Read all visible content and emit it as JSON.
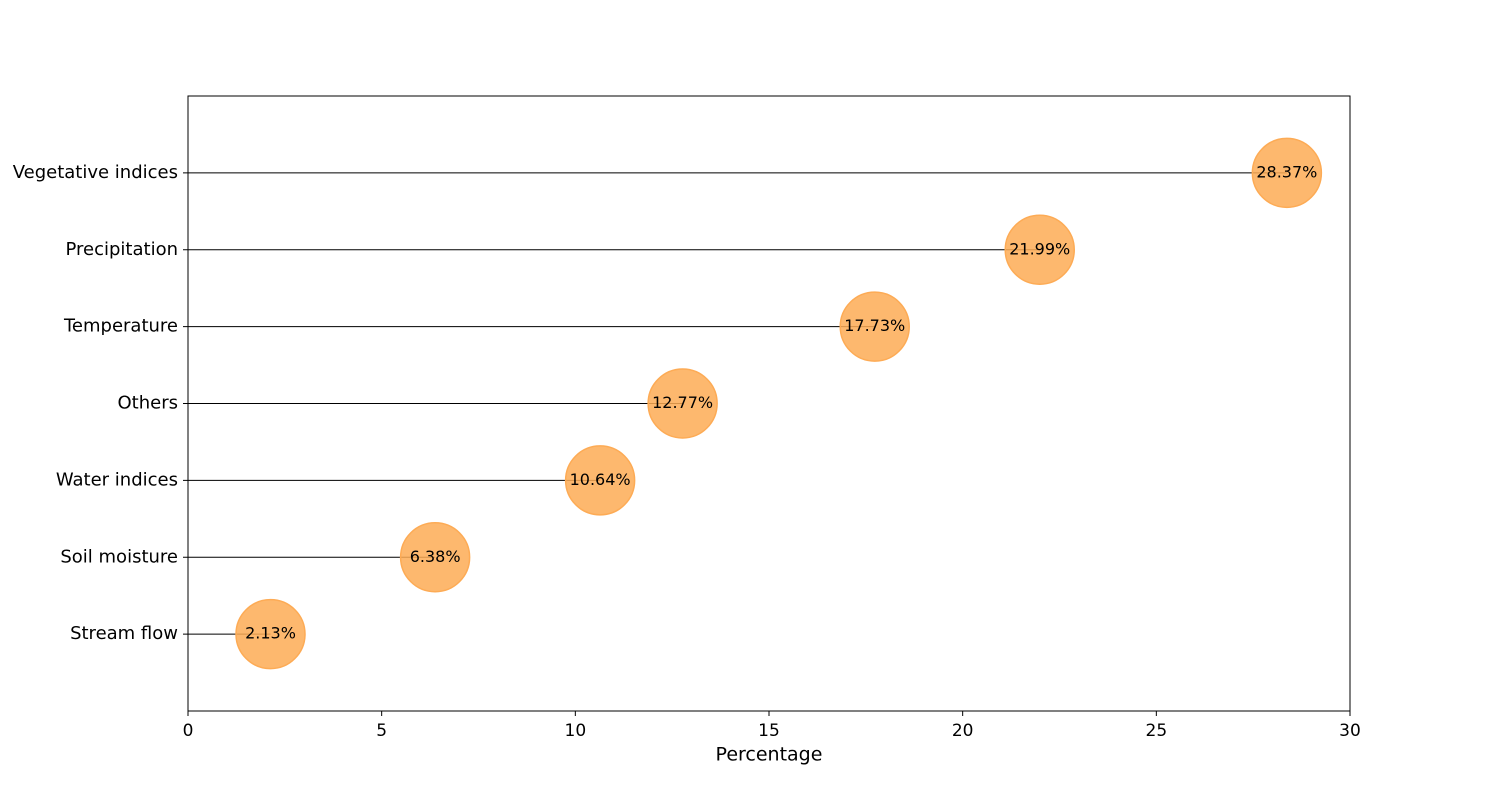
{
  "chart_data": {
    "type": "lollipop",
    "x_label": "Percentage",
    "categories": [
      "Vegetative indices",
      "Precipitation",
      "Temperature",
      "Others",
      "Water indices",
      "Soil moisture",
      "Stream flow"
    ],
    "values": [
      28.37,
      21.99,
      17.73,
      12.77,
      10.64,
      6.38,
      2.13
    ],
    "value_labels": [
      "28.37%",
      "21.99%",
      "17.73%",
      "12.77%",
      "10.64%",
      "6.38%",
      "2.13%"
    ],
    "color": "#fdab55",
    "xlim": [
      0,
      30
    ],
    "xticks": [
      0,
      5,
      10,
      15,
      20,
      25,
      30
    ]
  }
}
